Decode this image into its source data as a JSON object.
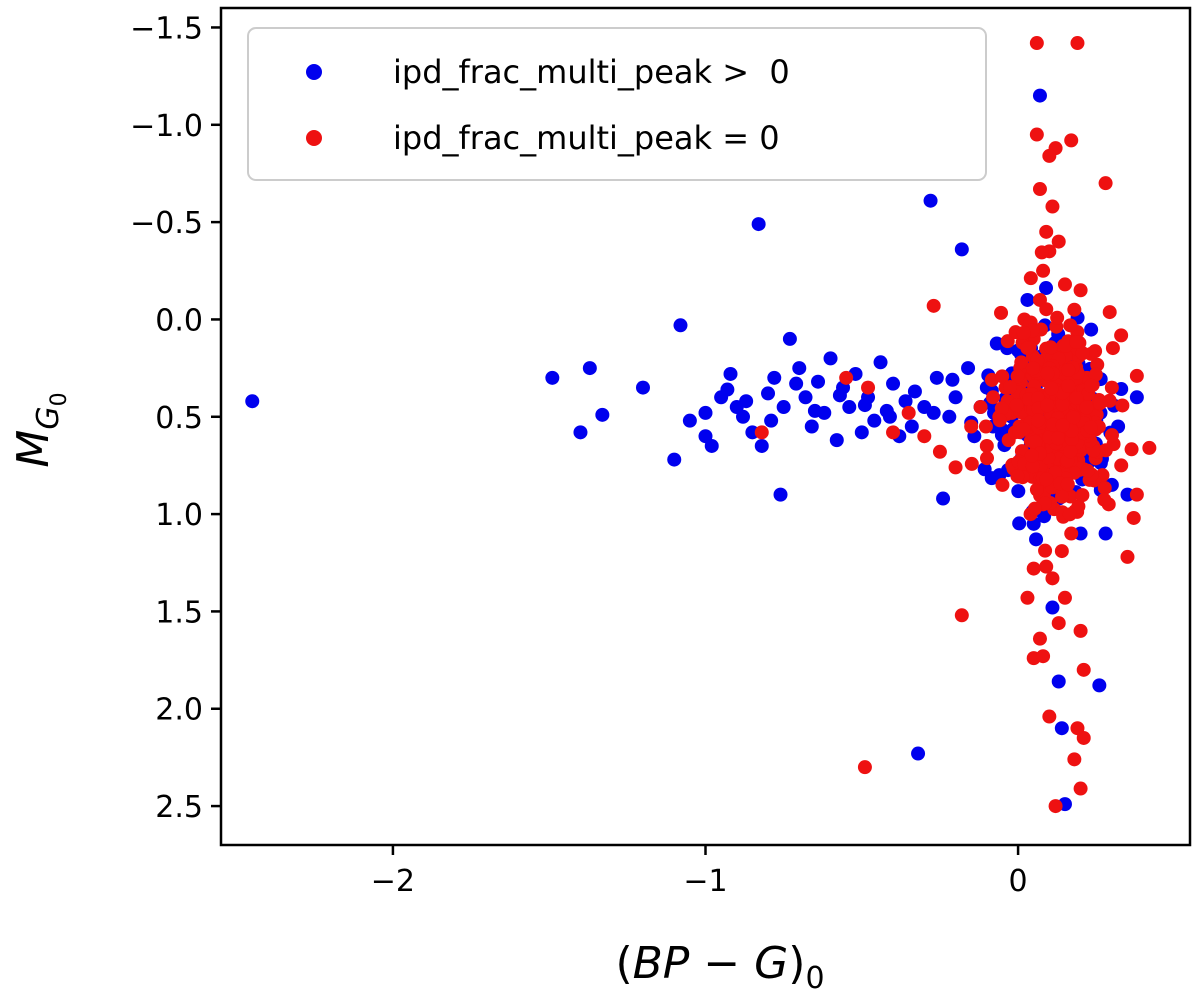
{
  "chart_data": {
    "type": "scatter",
    "xlabel": "(BP − G)₀",
    "xlabel_parts": {
      "open": "(",
      "bp": "BP",
      "minus": " − ",
      "g": "G",
      "close": ")",
      "sub": "0"
    },
    "ylabel": "M_G0",
    "ylabel_parts": {
      "m": "M",
      "g": "G",
      "sub": "0"
    },
    "xlim": [
      -2.55,
      0.55
    ],
    "ylim": [
      2.7,
      -1.6
    ],
    "y_inverted": true,
    "xticks": [
      -2,
      -1,
      0
    ],
    "xtick_labels": [
      "−2",
      "−1",
      "0"
    ],
    "yticks": [
      -1.5,
      -1.0,
      -0.5,
      0.0,
      0.5,
      1.0,
      1.5,
      2.0,
      2.5
    ],
    "ytick_labels": [
      "−1.5",
      "−1.0",
      "−0.5",
      "0.0",
      "0.5",
      "1.0",
      "1.5",
      "2.0",
      "2.5"
    ],
    "legend_position": "top-left",
    "grid": false,
    "series": [
      {
        "name": "ipd_frac_multi_peak >  0",
        "color": "#0000ee",
        "points": [
          [
            -2.45,
            0.42
          ],
          [
            -1.49,
            0.3
          ],
          [
            -1.37,
            0.25
          ],
          [
            -1.4,
            0.58
          ],
          [
            -1.33,
            0.49
          ],
          [
            -1.2,
            0.35
          ],
          [
            -1.1,
            0.72
          ],
          [
            -1.08,
            0.03
          ],
          [
            -1.05,
            0.52
          ],
          [
            -1.0,
            0.48
          ],
          [
            -1.0,
            0.6
          ],
          [
            -0.98,
            0.65
          ],
          [
            -0.95,
            0.4
          ],
          [
            -0.92,
            0.28
          ],
          [
            -0.9,
            0.45
          ],
          [
            -0.88,
            0.5
          ],
          [
            -0.85,
            0.58
          ],
          [
            -0.83,
            -0.49
          ],
          [
            -0.82,
            0.65
          ],
          [
            -0.8,
            0.38
          ],
          [
            -0.78,
            0.3
          ],
          [
            -0.75,
            0.45
          ],
          [
            -0.73,
            0.1
          ],
          [
            -0.7,
            0.25
          ],
          [
            -0.68,
            0.4
          ],
          [
            -0.66,
            0.55
          ],
          [
            -0.64,
            0.32
          ],
          [
            -0.62,
            0.48
          ],
          [
            -0.6,
            0.2
          ],
          [
            -0.58,
            0.62
          ],
          [
            -0.56,
            0.35
          ],
          [
            -0.54,
            0.45
          ],
          [
            -0.52,
            0.28
          ],
          [
            -0.5,
            0.58
          ],
          [
            -0.48,
            0.4
          ],
          [
            -0.46,
            0.52
          ],
          [
            -0.44,
            0.22
          ],
          [
            -0.42,
            0.47
          ],
          [
            -0.4,
            0.33
          ],
          [
            -0.38,
            0.6
          ],
          [
            -0.36,
            0.42
          ],
          [
            -0.34,
            0.55
          ],
          [
            -0.32,
            2.23
          ],
          [
            -0.3,
            0.45
          ],
          [
            -0.28,
            -0.61
          ],
          [
            -0.26,
            0.3
          ],
          [
            -0.24,
            0.92
          ],
          [
            -0.22,
            0.5
          ],
          [
            -0.2,
            0.4
          ],
          [
            -0.18,
            -0.36
          ],
          [
            -0.16,
            0.25
          ],
          [
            -0.14,
            0.6
          ],
          [
            -0.12,
            0.45
          ],
          [
            -0.1,
            0.35
          ],
          [
            -0.08,
            0.55
          ],
          [
            -0.06,
            0.8
          ],
          [
            -0.04,
            0.3
          ],
          [
            -0.02,
            0.5
          ],
          [
            0.0,
            0.4
          ],
          [
            0.02,
            0.2
          ],
          [
            0.03,
            -0.1
          ],
          [
            0.04,
            0.65
          ],
          [
            0.05,
            1.05
          ],
          [
            0.06,
            0.45
          ],
          [
            0.07,
            -1.15
          ],
          [
            0.08,
            0.55
          ],
          [
            0.09,
            0.3
          ],
          [
            0.1,
            0.75
          ],
          [
            0.11,
            1.48
          ],
          [
            0.12,
            0.4
          ],
          [
            0.13,
            1.86
          ],
          [
            0.14,
            2.1
          ],
          [
            0.15,
            2.49
          ],
          [
            0.16,
            0.6
          ],
          [
            0.17,
            0.35
          ],
          [
            0.18,
            0.5
          ],
          [
            0.2,
            1.1
          ],
          [
            0.22,
            0.7
          ],
          [
            0.24,
            0.45
          ],
          [
            0.26,
            1.88
          ],
          [
            0.28,
            1.1
          ],
          [
            0.3,
            0.85
          ],
          [
            0.32,
            0.55
          ],
          [
            0.35,
            0.9
          ],
          [
            0.38,
            0.4
          ],
          [
            -0.93,
            0.36
          ],
          [
            -0.87,
            0.42
          ],
          [
            -0.79,
            0.52
          ],
          [
            -0.71,
            0.33
          ],
          [
            -0.65,
            0.47
          ],
          [
            -0.57,
            0.39
          ],
          [
            -0.49,
            0.44
          ],
          [
            -0.41,
            0.5
          ],
          [
            -0.33,
            0.37
          ],
          [
            -0.27,
            0.48
          ],
          [
            -0.21,
            0.31
          ],
          [
            -0.15,
            0.53
          ],
          [
            -0.09,
            0.43
          ],
          [
            -0.03,
            0.36
          ],
          [
            0.01,
            0.58
          ],
          [
            0.07,
            0.49
          ],
          [
            0.13,
            0.38
          ],
          [
            0.19,
            0.62
          ],
          [
            0.25,
            0.52
          ],
          [
            -0.76,
            0.9
          ]
        ]
      },
      {
        "name": "ipd_frac_multi_peak = 0",
        "color": "#ee1111",
        "points": [
          [
            0.06,
            -1.42
          ],
          [
            0.19,
            -1.42
          ],
          [
            0.06,
            -0.95
          ],
          [
            0.17,
            -0.92
          ],
          [
            0.12,
            -0.88
          ],
          [
            0.1,
            -0.84
          ],
          [
            0.28,
            -0.7
          ],
          [
            0.07,
            -0.67
          ],
          [
            0.11,
            -0.58
          ],
          [
            0.09,
            -0.45
          ],
          [
            0.13,
            -0.4
          ],
          [
            0.1,
            -0.35
          ],
          [
            0.08,
            -0.25
          ],
          [
            0.15,
            -0.18
          ],
          [
            0.2,
            -0.15
          ],
          [
            0.07,
            -0.1
          ],
          [
            0.18,
            -0.05
          ],
          [
            -0.27,
            -0.07
          ],
          [
            0.02,
            0.0
          ],
          [
            0.05,
            0.1
          ],
          [
            0.09,
            0.15
          ],
          [
            0.14,
            0.2
          ],
          [
            0.22,
            0.3
          ],
          [
            0.3,
            0.35
          ],
          [
            0.38,
            0.29
          ],
          [
            -0.82,
            0.58
          ],
          [
            -0.55,
            0.3
          ],
          [
            -0.48,
            0.35
          ],
          [
            -0.4,
            0.58
          ],
          [
            -0.35,
            0.48
          ],
          [
            -0.3,
            0.6
          ],
          [
            -0.25,
            0.68
          ],
          [
            -0.2,
            0.76
          ],
          [
            -0.18,
            1.52
          ],
          [
            -0.15,
            0.55
          ],
          [
            -0.12,
            0.45
          ],
          [
            -0.1,
            0.65
          ],
          [
            -0.08,
            0.4
          ],
          [
            -0.06,
            0.5
          ],
          [
            -0.05,
            0.85
          ],
          [
            -0.04,
            0.35
          ],
          [
            -0.03,
            0.62
          ],
          [
            -0.02,
            0.48
          ],
          [
            -0.01,
            0.58
          ],
          [
            0.0,
            0.45
          ],
          [
            0.01,
            0.38
          ],
          [
            0.02,
            0.7
          ],
          [
            0.03,
            0.52
          ],
          [
            0.04,
            0.42
          ],
          [
            0.05,
            0.6
          ],
          [
            0.06,
            0.48
          ],
          [
            0.07,
            0.75
          ],
          [
            0.08,
            0.55
          ],
          [
            0.09,
            0.4
          ],
          [
            0.1,
            0.65
          ],
          [
            0.11,
            0.5
          ],
          [
            0.12,
            0.35
          ],
          [
            0.13,
            0.58
          ],
          [
            0.14,
            0.45
          ],
          [
            0.15,
            0.7
          ],
          [
            0.16,
            0.52
          ],
          [
            0.17,
            0.4
          ],
          [
            0.18,
            0.62
          ],
          [
            0.19,
            0.48
          ],
          [
            0.2,
            0.55
          ],
          [
            0.21,
            0.42
          ],
          [
            0.22,
            0.6
          ],
          [
            0.23,
            0.5
          ],
          [
            0.24,
            0.65
          ],
          [
            0.25,
            0.45
          ],
          [
            0.03,
            1.43
          ],
          [
            0.05,
            1.74
          ],
          [
            0.07,
            1.64
          ],
          [
            0.09,
            1.27
          ],
          [
            0.11,
            1.33
          ],
          [
            0.13,
            1.56
          ],
          [
            0.15,
            1.43
          ],
          [
            0.17,
            1.1
          ],
          [
            0.19,
            2.1
          ],
          [
            0.2,
            2.41
          ],
          [
            0.21,
            2.15
          ],
          [
            0.18,
            2.26
          ],
          [
            0.12,
            2.5
          ],
          [
            0.1,
            2.04
          ],
          [
            0.08,
            1.73
          ],
          [
            0.2,
            1.6
          ],
          [
            0.21,
            1.8
          ],
          [
            0.35,
            1.22
          ],
          [
            0.38,
            0.9
          ],
          [
            0.42,
            0.66
          ],
          [
            0.37,
            1.02
          ],
          [
            0.29,
            0.95
          ],
          [
            0.33,
            0.75
          ],
          [
            0.27,
            0.8
          ],
          [
            -0.49,
            2.3
          ],
          [
            0.05,
            1.28
          ],
          [
            0.14,
            1.19
          ],
          [
            0.04,
            1.0
          ],
          [
            0.16,
            0.9
          ],
          [
            0.08,
            0.95
          ]
        ]
      }
    ],
    "dense_cluster": {
      "x_center": 0.12,
      "y_center": 0.5,
      "x_spread": 0.11,
      "y_spread": 0.28,
      "count": 420
    }
  }
}
